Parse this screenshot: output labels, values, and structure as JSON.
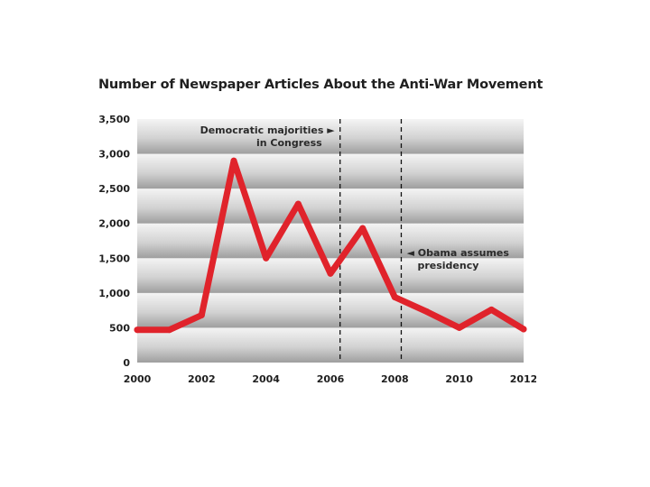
{
  "chart_data": {
    "type": "line",
    "title": "Number of Newspaper Articles About the Anti-War Movement",
    "xlabel": "",
    "ylabel": "",
    "x": [
      2000,
      2001,
      2002,
      2003,
      2004,
      2005,
      2006,
      2007,
      2008,
      2009,
      2010,
      2011,
      2012
    ],
    "series": [
      {
        "values": [
          470,
          470,
          680,
          2900,
          1500,
          2280,
          1280,
          1930,
          940,
          730,
          500,
          760,
          480
        ]
      }
    ],
    "xlim": [
      2000,
      2012
    ],
    "ylim": [
      0,
      3500
    ],
    "x_ticks": [
      {
        "value": 2000,
        "label": "2000"
      },
      {
        "value": 2002,
        "label": "2002"
      },
      {
        "value": 2004,
        "label": "2004"
      },
      {
        "value": 2006,
        "label": "2006"
      },
      {
        "value": 2008,
        "label": "2008"
      },
      {
        "value": 2010,
        "label": "2010"
      },
      {
        "value": 2012,
        "label": "2012"
      }
    ],
    "y_ticks": [
      {
        "value": 0,
        "label": "0"
      },
      {
        "value": 500,
        "label": "500"
      },
      {
        "value": 1000,
        "label": "1,000"
      },
      {
        "value": 1500,
        "label": "1,500"
      },
      {
        "value": 2000,
        "label": "2,000"
      },
      {
        "value": 2500,
        "label": "2,500"
      },
      {
        "value": 3000,
        "label": "3,000"
      },
      {
        "value": 3500,
        "label": "3,500"
      }
    ],
    "grid": true,
    "legend": "none",
    "line_color": "#e0232b",
    "annotations": [
      {
        "x": 2006.3,
        "line1": "Democratic majorities ►",
        "line2": "in Congress",
        "side": "left"
      },
      {
        "x": 2008.2,
        "line1": "◄ Obama assumes",
        "line2": "presidency",
        "side": "right"
      }
    ]
  }
}
